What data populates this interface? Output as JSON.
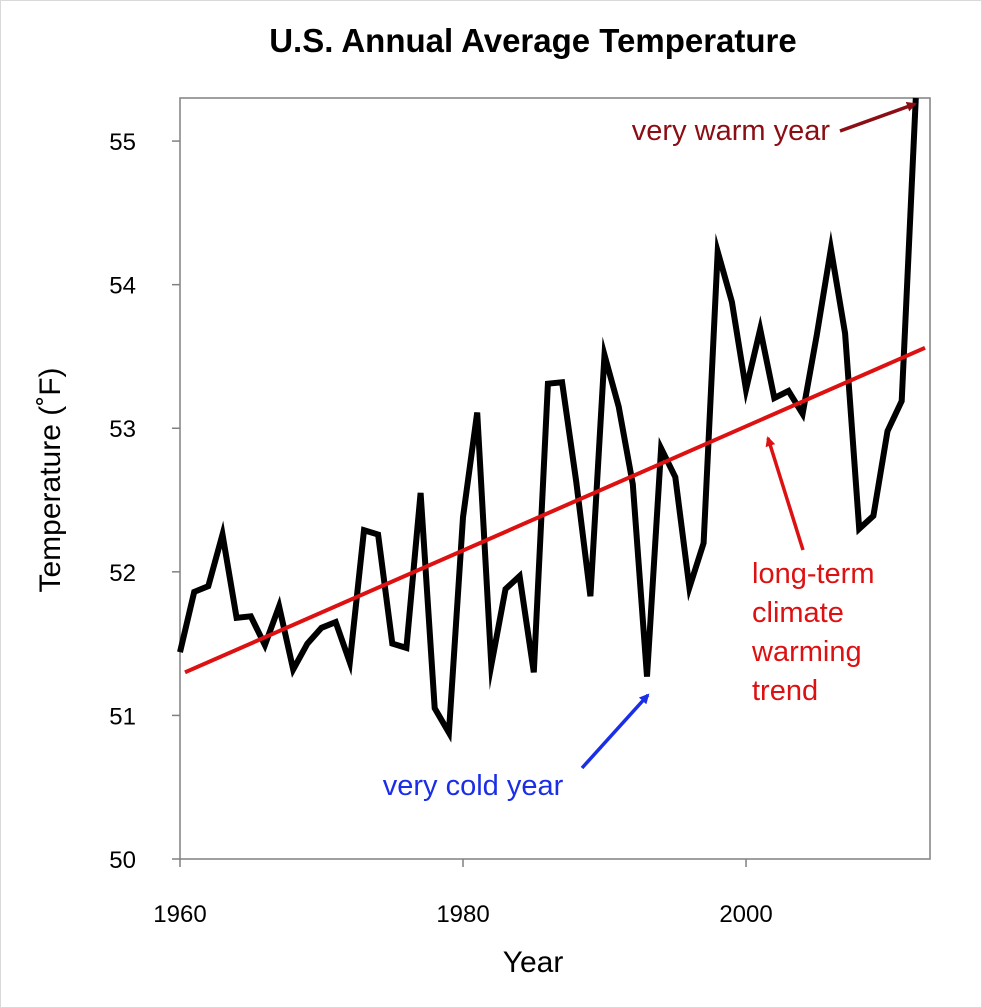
{
  "chart_data": {
    "type": "line",
    "title": "U.S. Annual Average Temperature",
    "xlabel": "Year",
    "ylabel": "Temperature (˚F)",
    "xlim": [
      1960,
      2013
    ],
    "ylim": [
      50,
      55.3
    ],
    "x_ticks": [
      "1960",
      "1980",
      "2000"
    ],
    "y_ticks": [
      "50",
      "51",
      "52",
      "53",
      "54",
      "55"
    ],
    "grid": false,
    "legend": "none",
    "series": [
      {
        "color": "#000000",
        "x": [
          1960,
          1961,
          1962,
          1963,
          1964,
          1965,
          1966,
          1967,
          1968,
          1969,
          1970,
          1971,
          1972,
          1973,
          1974,
          1975,
          1976,
          1977,
          1978,
          1979,
          1980,
          1981,
          1982,
          1983,
          1984,
          1985,
          1986,
          1987,
          1988,
          1989,
          1990,
          1991,
          1992,
          1993,
          1994,
          1995,
          1996,
          1997,
          1998,
          1999,
          2000,
          2001,
          2002,
          2003,
          2004,
          2005,
          2006,
          2007,
          2008,
          2009,
          2010,
          2011,
          2012
        ],
        "y": [
          51.44,
          51.86,
          51.9,
          52.26,
          51.68,
          51.69,
          51.49,
          51.76,
          51.32,
          51.5,
          51.61,
          51.65,
          51.37,
          52.29,
          52.26,
          51.5,
          51.47,
          52.55,
          51.05,
          50.88,
          52.38,
          53.11,
          51.35,
          51.88,
          51.97,
          51.3,
          53.31,
          53.32,
          52.63,
          51.83,
          53.51,
          53.15,
          52.61,
          51.27,
          52.86,
          52.66,
          51.89,
          52.2,
          54.23,
          53.88,
          53.27,
          53.69,
          53.21,
          53.26,
          53.1,
          53.65,
          54.25,
          53.66,
          52.3,
          52.39,
          52.98,
          53.19,
          55.3
        ]
      }
    ],
    "trend": {
      "color": "#dd1111",
      "x": [
        1960,
        2013
      ],
      "y": [
        51.3,
        53.56
      ]
    },
    "annotations": {
      "warm": {
        "text": "very warm year",
        "color": "#8b0e14"
      },
      "cold": {
        "text": "very cold year",
        "color": "#1a2ee8"
      },
      "trend": {
        "lines": [
          "long-term",
          "climate",
          "warming",
          "trend"
        ],
        "color": "#dd1111"
      }
    }
  }
}
